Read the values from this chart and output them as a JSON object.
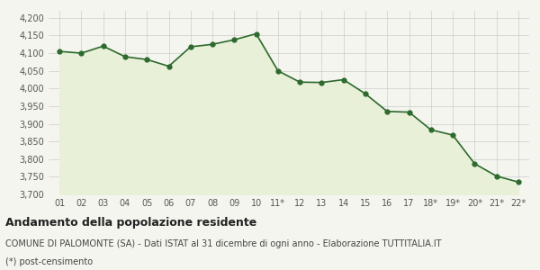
{
  "x_labels": [
    "01",
    "02",
    "03",
    "04",
    "05",
    "06",
    "07",
    "08",
    "09",
    "10",
    "11*",
    "12",
    "13",
    "14",
    "15",
    "16",
    "17",
    "18*",
    "19*",
    "20*",
    "21*",
    "22*"
  ],
  "y_values": [
    4105,
    4100,
    4120,
    4090,
    4082,
    4063,
    4118,
    4125,
    4138,
    4155,
    4050,
    4018,
    4017,
    4025,
    3985,
    3935,
    3933,
    3883,
    3868,
    3787,
    3752,
    3735
  ],
  "line_color": "#2d6a2d",
  "fill_color": "#e8f0d8",
  "marker_color": "#2d6a2d",
  "bg_color": "#f5f5ef",
  "grid_color": "#cccccc",
  "ylim": [
    3700,
    4220
  ],
  "yticks": [
    3700,
    3750,
    3800,
    3850,
    3900,
    3950,
    4000,
    4050,
    4100,
    4150,
    4200
  ],
  "title": "Andamento della popolazione residente",
  "subtitle": "COMUNE DI PALOMONTE (SA) - Dati ISTAT al 31 dicembre di ogni anno - Elaborazione TUTTITALIA.IT",
  "footnote": "(*) post-censimento",
  "title_fontsize": 9,
  "subtitle_fontsize": 7,
  "footnote_fontsize": 7,
  "tick_fontsize": 7,
  "marker_size": 3.5,
  "linewidth": 1.2
}
